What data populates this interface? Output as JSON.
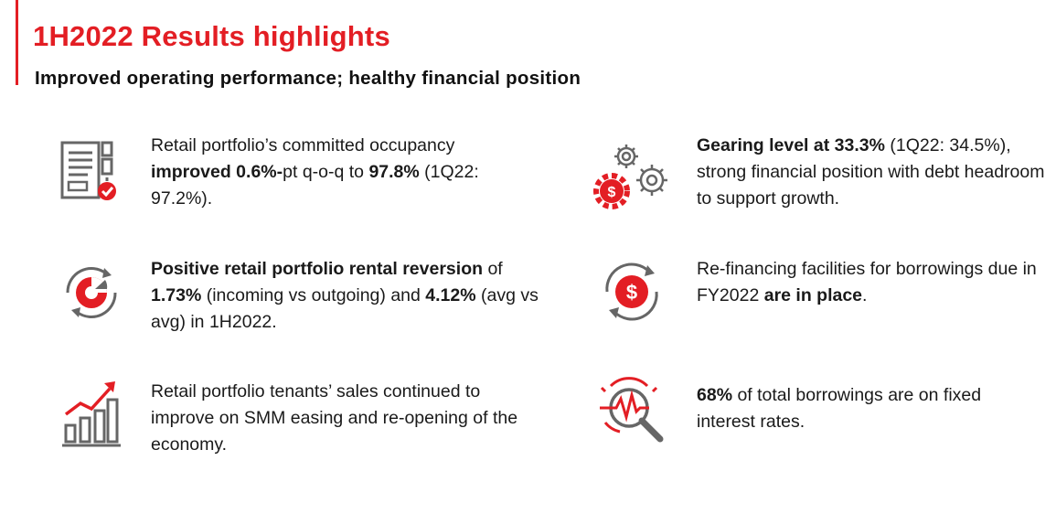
{
  "header": {
    "title": "1H2022 Results highlights",
    "subtitle": "Improved operating performance; healthy financial position"
  },
  "colors": {
    "accent": "#e31e24",
    "icon_gray": "#666666",
    "text": "#1a1a1a"
  },
  "highlights": [
    {
      "icon": "checklist-icon",
      "segments": [
        {
          "t": "Retail portfolio’s committed occupancy ",
          "b": false
        },
        {
          "t": "improved 0.6%-",
          "b": true
        },
        {
          "t": "pt q-o-q to ",
          "b": false
        },
        {
          "t": "97.8%",
          "b": true
        },
        {
          "t": " (1Q22: 97.2%).",
          "b": false
        }
      ]
    },
    {
      "icon": "pie-cycle-icon",
      "segments": [
        {
          "t": "Positive retail portfolio rental reversion",
          "b": true
        },
        {
          "t": " of ",
          "b": false
        },
        {
          "t": "1.73%",
          "b": true
        },
        {
          "t": " (incoming vs outgoing) and ",
          "b": false
        },
        {
          "t": "4.12%",
          "b": true
        },
        {
          "t": " (avg vs avg) in 1H2022.",
          "b": false
        }
      ]
    },
    {
      "icon": "growth-chart-icon",
      "segments": [
        {
          "t": "Retail portfolio tenants’ sales continued to improve on SMM easing and re-opening of the economy.",
          "b": false
        }
      ]
    },
    {
      "icon": "gears-dollar-icon",
      "segments": [
        {
          "t": "Gearing level at 33.3%",
          "b": true
        },
        {
          "t": " (1Q22: 34.5%), strong financial position with debt headroom to support growth.",
          "b": false
        }
      ]
    },
    {
      "icon": "refinance-dollar-icon",
      "segments": [
        {
          "t": "Re-financing facilities for borrowings due in FY2022 ",
          "b": false
        },
        {
          "t": "are in place",
          "b": true
        },
        {
          "t": ".",
          "b": false
        }
      ]
    },
    {
      "icon": "magnifier-pulse-icon",
      "segments": [
        {
          "t": "68%",
          "b": true
        },
        {
          "t": " of total borrowings are on fixed interest rates.",
          "b": false
        }
      ]
    }
  ]
}
